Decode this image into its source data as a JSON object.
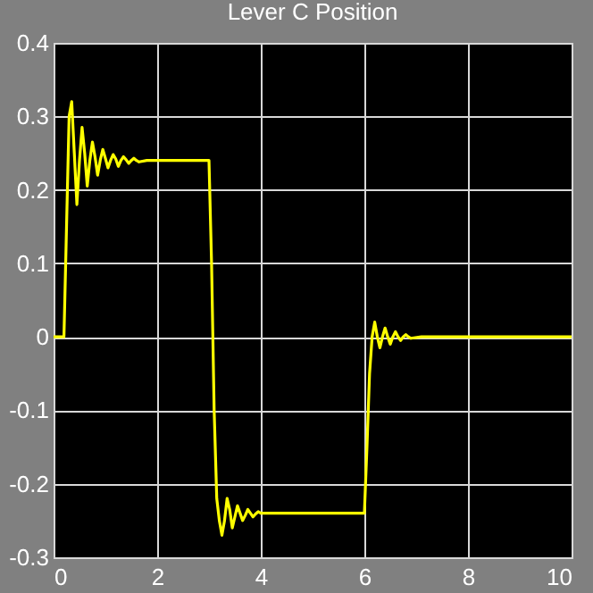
{
  "chart_data": {
    "type": "line",
    "title": "Lever C Position",
    "x": [
      0,
      0.2,
      0.25,
      0.3,
      0.35,
      0.4,
      0.45,
      0.5,
      0.55,
      0.6,
      0.65,
      0.7,
      0.75,
      0.8,
      0.85,
      0.9,
      0.95,
      1.0,
      1.05,
      1.1,
      1.15,
      1.2,
      1.25,
      1.3,
      1.35,
      1.4,
      1.45,
      1.5,
      1.55,
      1.6,
      1.65,
      1.8,
      2.0,
      3.0,
      3.05,
      3.1,
      3.15,
      3.2,
      3.25,
      3.3,
      3.35,
      3.4,
      3.45,
      3.5,
      3.55,
      3.6,
      3.65,
      3.7,
      3.75,
      3.8,
      3.85,
      3.9,
      3.95,
      4.0,
      4.2,
      6.0,
      6.05,
      6.1,
      6.15,
      6.2,
      6.25,
      6.3,
      6.35,
      6.4,
      6.45,
      6.5,
      6.55,
      6.6,
      6.65,
      6.7,
      6.75,
      6.8,
      6.85,
      6.9,
      7.1,
      10
    ],
    "series": [
      {
        "color": "#ffff00",
        "values": [
          0,
          0,
          0.15,
          0.3,
          0.32,
          0.25,
          0.18,
          0.24,
          0.285,
          0.25,
          0.205,
          0.24,
          0.265,
          0.245,
          0.22,
          0.24,
          0.255,
          0.243,
          0.23,
          0.24,
          0.248,
          0.242,
          0.232,
          0.24,
          0.245,
          0.241,
          0.236,
          0.24,
          0.243,
          0.24,
          0.238,
          0.24,
          0.24,
          0.24,
          0.1,
          -0.1,
          -0.22,
          -0.25,
          -0.27,
          -0.25,
          -0.22,
          -0.235,
          -0.26,
          -0.245,
          -0.23,
          -0.24,
          -0.25,
          -0.243,
          -0.235,
          -0.24,
          -0.245,
          -0.241,
          -0.238,
          -0.24,
          -0.24,
          -0.24,
          -0.15,
          -0.05,
          0.0,
          0.02,
          0.0,
          -0.015,
          0.0,
          0.012,
          0.0,
          -0.01,
          0.0,
          0.007,
          0.0,
          -0.005,
          0.0,
          0.003,
          0.0,
          -0.002,
          0,
          0
        ]
      }
    ],
    "xlim": [
      0,
      10
    ],
    "ylim": [
      -0.3,
      0.4
    ],
    "xticks": [
      0,
      2,
      4,
      6,
      8,
      10
    ],
    "yticks": [
      -0.3,
      -0.2,
      -0.1,
      0,
      0.1,
      0.2,
      0.3,
      0.4
    ],
    "grid": true,
    "marker": "none",
    "line_style": "solid"
  }
}
